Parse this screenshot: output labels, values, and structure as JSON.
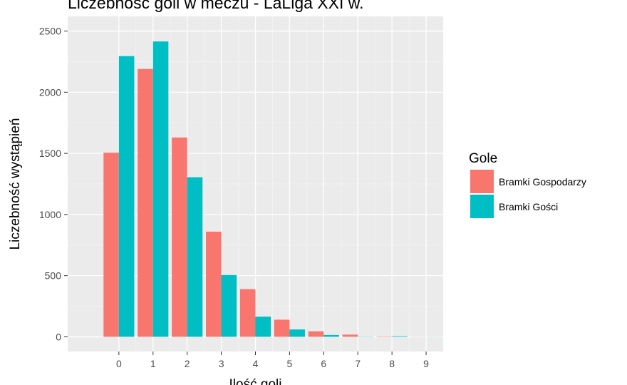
{
  "chart_data": {
    "type": "bar",
    "title": "Liczebność goli w meczu - LaLiga XXI w.",
    "xlabel": "Ilość goli",
    "ylabel": "Liczebność wystąpień",
    "x": [
      0,
      1,
      2,
      3,
      4,
      5,
      6,
      7,
      8,
      9
    ],
    "xlim": [
      -1.5,
      9.5
    ],
    "ylim": [
      -120,
      2620
    ],
    "yticks": [
      0,
      500,
      1000,
      1500,
      2000,
      2500
    ],
    "grid": true,
    "legend": {
      "title": "Gole",
      "position": "right"
    },
    "series": [
      {
        "name": "Bramki Gospodarzy",
        "color": "#F8766D",
        "values": [
          1505,
          2190,
          1630,
          860,
          390,
          140,
          45,
          18,
          3,
          1
        ]
      },
      {
        "name": "Bramki Gości",
        "color": "#00BFC4",
        "values": [
          2295,
          2415,
          1305,
          505,
          165,
          60,
          15,
          2,
          5,
          1
        ]
      }
    ]
  }
}
